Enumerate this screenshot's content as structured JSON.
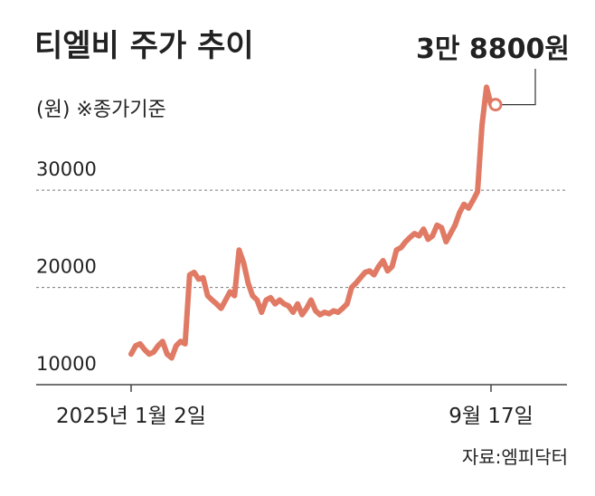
{
  "chart_data": {
    "type": "line",
    "title": "티엘비 주가 추이",
    "subtitle": "(원) ※종가기준",
    "annotation": "3만 8800원",
    "source": "자료:엠피닥터",
    "categories": [
      "2025년 1월 2일",
      null,
      null,
      null,
      null,
      null,
      null,
      null,
      null,
      null,
      null,
      null,
      null,
      null,
      null,
      null,
      null,
      null,
      null,
      null,
      null,
      null,
      null,
      null,
      null,
      null,
      null,
      null,
      null,
      null,
      null,
      null,
      null,
      null,
      null,
      null,
      null,
      null,
      null,
      null,
      null,
      null,
      null,
      null,
      null,
      null,
      null,
      null,
      null,
      null,
      null,
      null,
      null,
      null,
      null,
      null,
      null,
      null,
      null,
      null,
      null,
      null,
      null,
      null,
      null,
      null,
      null,
      null,
      null,
      null,
      null,
      null,
      null,
      null,
      null,
      null,
      null,
      null,
      null,
      null,
      "9월 17일"
    ],
    "values": [
      13150,
      14000,
      14200,
      13600,
      13150,
      13350,
      14000,
      14450,
      13150,
      12750,
      14000,
      14450,
      14200,
      21300,
      21550,
      20850,
      21000,
      19150,
      18700,
      18300,
      17850,
      18700,
      19550,
      19150,
      23850,
      22550,
      20450,
      19150,
      18700,
      17450,
      18700,
      18950,
      18300,
      18700,
      18300,
      18100,
      17450,
      18300,
      17200,
      17850,
      18700,
      17600,
      17200,
      17450,
      17300,
      17600,
      17450,
      17850,
      18300,
      20000,
      20450,
      21000,
      21550,
      21700,
      21300,
      22150,
      22750,
      21700,
      22150,
      23850,
      24100,
      24700,
      25150,
      25550,
      25300,
      26000,
      24950,
      25300,
      26400,
      26150,
      24700,
      25550,
      26400,
      27700,
      28550,
      28150,
      28950,
      29850,
      36650,
      40600,
      38800
    ],
    "color": "#e07a64",
    "ylim": [
      10000,
      41000
    ],
    "yticks": [
      10000,
      20000,
      30000
    ],
    "grid": true
  }
}
